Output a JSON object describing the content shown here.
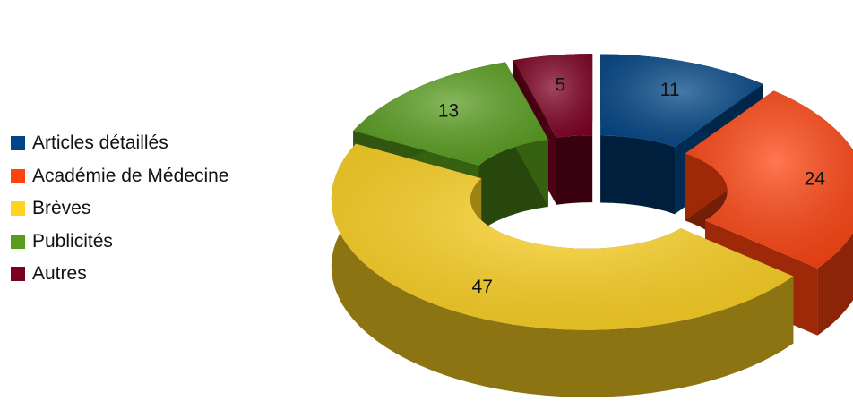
{
  "chart_data": {
    "type": "pie",
    "style": "3d-donut-exploded",
    "title": "",
    "legend_position": "left",
    "categories": [
      "Articles détaillés",
      "Académie de Médecine",
      "Brèves",
      "Publicités",
      "Autres"
    ],
    "values": [
      11,
      24,
      47,
      13,
      5
    ],
    "colors": [
      "#004586",
      "#ff420e",
      "#ffd320",
      "#579d1c",
      "#7e0021"
    ]
  }
}
